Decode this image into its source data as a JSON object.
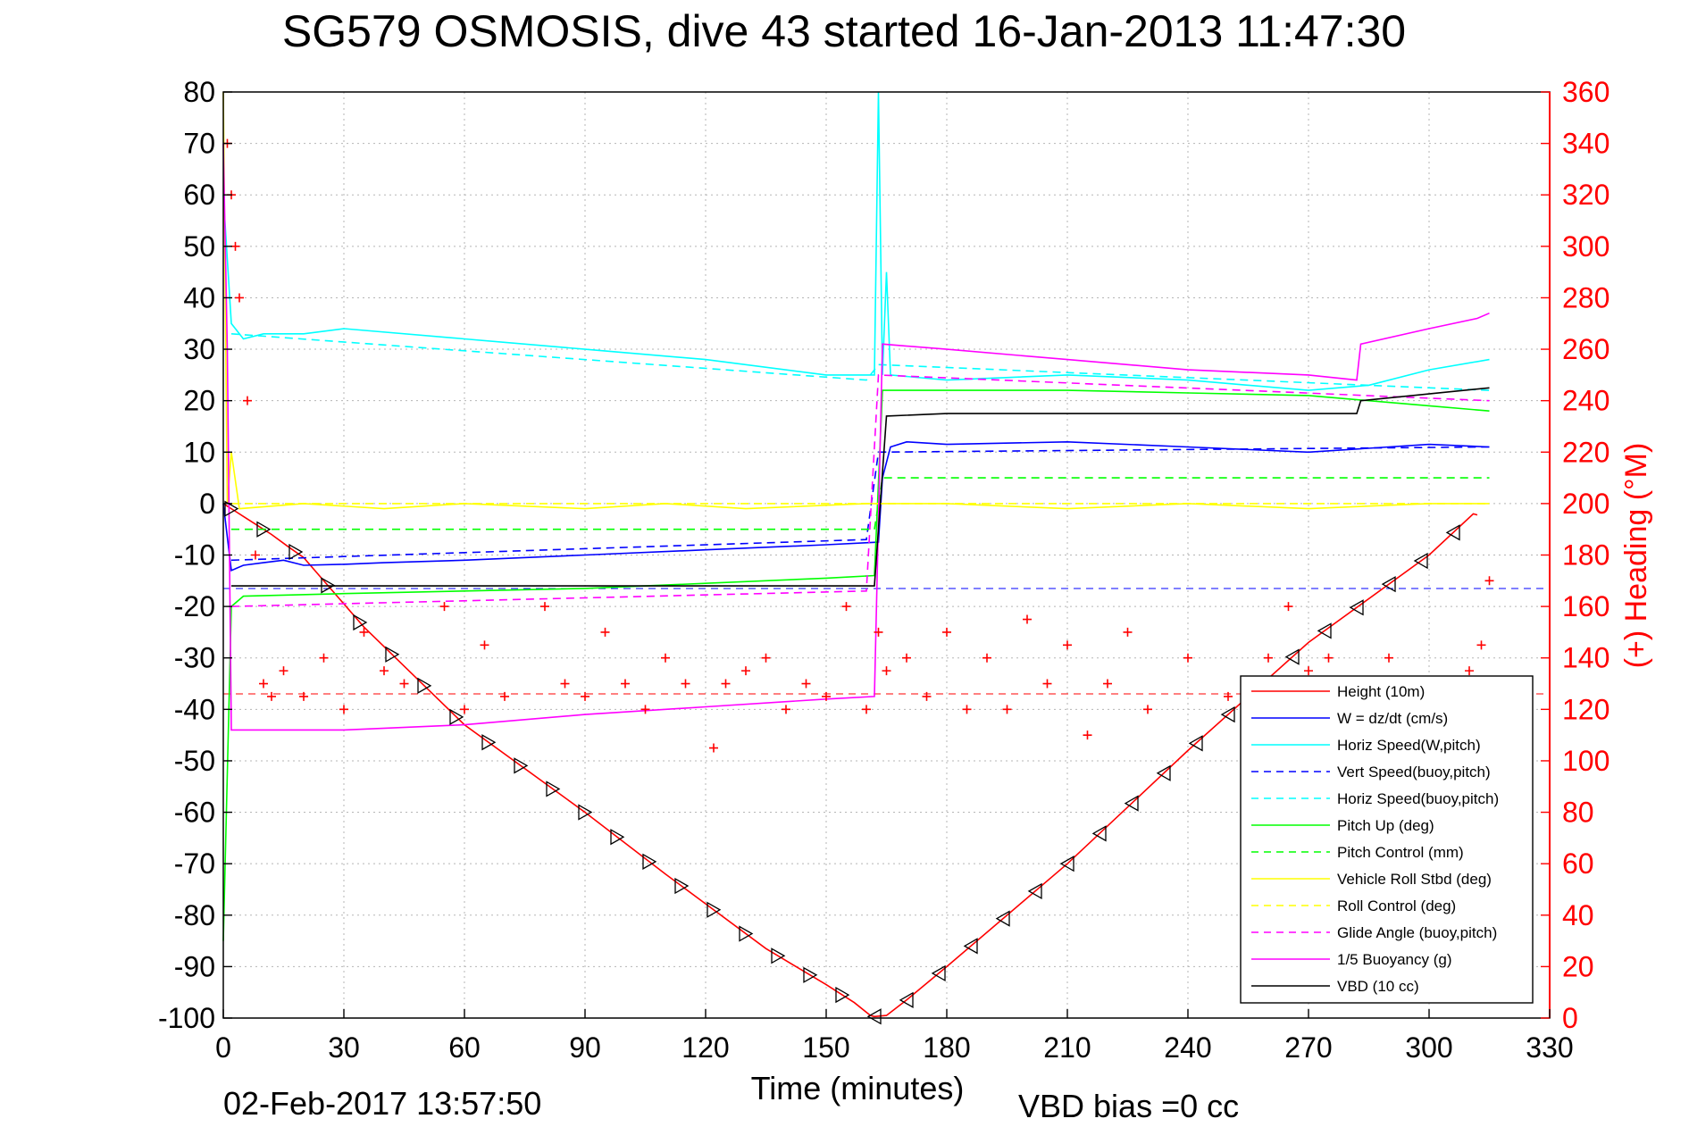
{
  "chart_data": {
    "type": "line",
    "title": "SG579 OSMOSIS, dive 43 started 16-Jan-2013 11:47:30",
    "xlabel": "Time (minutes)",
    "ylabel_right": "(+) Heading (°M)",
    "footer_left": "02-Feb-2017 13:57:50",
    "footer_right": "VBD bias =0 cc",
    "xlim": [
      0,
      330
    ],
    "ylim": [
      -100,
      80
    ],
    "ylim_right": [
      0,
      360
    ],
    "xticks": [
      0,
      30,
      60,
      90,
      120,
      150,
      180,
      210,
      240,
      270,
      300,
      330
    ],
    "yticks": [
      80,
      70,
      60,
      50,
      40,
      30,
      20,
      10,
      0,
      -10,
      -20,
      -30,
      -40,
      -50,
      -60,
      -70,
      -80,
      -90,
      -100
    ],
    "yticks_right": [
      360,
      340,
      320,
      300,
      280,
      260,
      240,
      220,
      200,
      180,
      160,
      140,
      120,
      100,
      80,
      60,
      40,
      20,
      0
    ],
    "grid": true,
    "legend_position": "bottom-right",
    "colors": {
      "right_axis": "#ff0000",
      "red": "#ff0000",
      "blue": "#0000ff",
      "cyan": "#00ffff",
      "green": "#00ff00",
      "yellow": "#ffff00",
      "magenta": "#ff00ff",
      "black": "#000000"
    },
    "legend": [
      {
        "label": "Height (10m)",
        "color": "#ff0000",
        "dash": false
      },
      {
        "label": "W = dz/dt (cm/s)",
        "color": "#0000ff",
        "dash": false
      },
      {
        "label": "Horiz Speed(W,pitch)",
        "color": "#00ffff",
        "dash": false
      },
      {
        "label": "Vert Speed(buoy,pitch)",
        "color": "#0000ff",
        "dash": true
      },
      {
        "label": "Horiz Speed(buoy,pitch)",
        "color": "#00ffff",
        "dash": true
      },
      {
        "label": "Pitch Up (deg)",
        "color": "#00ff00",
        "dash": false
      },
      {
        "label": "Pitch Control (mm)",
        "color": "#00ff00",
        "dash": true
      },
      {
        "label": "Vehicle Roll Stbd (deg)",
        "color": "#ffff00",
        "dash": false
      },
      {
        "label": "Roll Control (deg)",
        "color": "#ffff00",
        "dash": true
      },
      {
        "label": "Glide Angle (buoy,pitch)",
        "color": "#ff00ff",
        "dash": true
      },
      {
        "label": "1/5 Buoyancy (g)",
        "color": "#ff00ff",
        "dash": false
      },
      {
        "label": "VBD (10 cc)",
        "color": "#000000",
        "dash": false
      }
    ],
    "series": [
      {
        "name": "Height (10m)",
        "color": "#ff0000",
        "dash": false,
        "points": [
          [
            0,
            0
          ],
          [
            1,
            -0.5
          ],
          [
            3,
            -1.5
          ],
          [
            5,
            -2.5
          ],
          [
            8,
            -4
          ],
          [
            12,
            -6
          ],
          [
            16,
            -8.3
          ],
          [
            20,
            -10.5
          ],
          [
            35,
            -24
          ],
          [
            60,
            -43
          ],
          [
            90,
            -60
          ],
          [
            110,
            -72
          ],
          [
            135,
            -86.5
          ],
          [
            150,
            -93.5
          ],
          [
            157,
            -97
          ],
          [
            161,
            -99.5
          ],
          [
            162,
            -99.7
          ],
          [
            165,
            -99.5
          ],
          [
            170,
            -96.5
          ],
          [
            180,
            -90
          ],
          [
            210,
            -70
          ],
          [
            240,
            -48
          ],
          [
            270,
            -27
          ],
          [
            300,
            -10
          ],
          [
            311,
            -2
          ],
          [
            312,
            -2.2
          ]
        ]
      },
      {
        "name": "W = dz/dt (cm/s)",
        "color": "#0000ff",
        "dash": false,
        "points": [
          [
            0,
            0
          ],
          [
            2,
            -13
          ],
          [
            5,
            -12
          ],
          [
            10,
            -11.5
          ],
          [
            15,
            -11
          ],
          [
            20,
            -12
          ],
          [
            30,
            -11.8
          ],
          [
            40,
            -11.5
          ],
          [
            60,
            -11
          ],
          [
            90,
            -10
          ],
          [
            120,
            -9
          ],
          [
            150,
            -8
          ],
          [
            163,
            -7.5
          ],
          [
            164,
            5
          ],
          [
            166,
            11
          ],
          [
            170,
            12
          ],
          [
            180,
            11.5
          ],
          [
            210,
            12
          ],
          [
            240,
            11
          ],
          [
            270,
            10
          ],
          [
            300,
            11.5
          ],
          [
            315,
            11
          ]
        ]
      },
      {
        "name": "Horiz Speed(W,pitch)",
        "color": "#00ffff",
        "dash": false,
        "points": [
          [
            0,
            60
          ],
          [
            2,
            35
          ],
          [
            5,
            32
          ],
          [
            10,
            33
          ],
          [
            20,
            33
          ],
          [
            30,
            34
          ],
          [
            60,
            32
          ],
          [
            90,
            30
          ],
          [
            120,
            28
          ],
          [
            150,
            25
          ],
          [
            162,
            25
          ],
          [
            163,
            80
          ],
          [
            164,
            25
          ],
          [
            165,
            45
          ],
          [
            166,
            25
          ],
          [
            180,
            24
          ],
          [
            210,
            25
          ],
          [
            240,
            24
          ],
          [
            270,
            22
          ],
          [
            285,
            23
          ],
          [
            300,
            26
          ],
          [
            315,
            28
          ]
        ]
      },
      {
        "name": "Vert Speed(buoy,pitch)",
        "color": "#0000ff",
        "dash": true,
        "points": [
          [
            2,
            -11
          ],
          [
            160,
            -7
          ],
          [
            163,
            10
          ],
          [
            315,
            11
          ]
        ]
      },
      {
        "name": "Horiz Speed(buoy,pitch)",
        "color": "#00ffff",
        "dash": true,
        "points": [
          [
            2,
            33
          ],
          [
            160,
            24
          ],
          [
            163,
            27
          ],
          [
            315,
            22
          ]
        ]
      },
      {
        "name": "Pitch Up (deg)",
        "color": "#00ff00",
        "dash": false,
        "points": [
          [
            0,
            -85
          ],
          [
            2,
            -20
          ],
          [
            5,
            -18
          ],
          [
            30,
            -17.5
          ],
          [
            60,
            -17
          ],
          [
            90,
            -16.5
          ],
          [
            120,
            -15.5
          ],
          [
            150,
            -14.5
          ],
          [
            162,
            -14
          ],
          [
            164,
            22
          ],
          [
            180,
            22
          ],
          [
            210,
            22
          ],
          [
            240,
            21.5
          ],
          [
            270,
            21
          ],
          [
            300,
            19
          ],
          [
            315,
            18
          ]
        ]
      },
      {
        "name": "Pitch Control (mm)",
        "color": "#00ff00",
        "dash": true,
        "points": [
          [
            2,
            -5
          ],
          [
            162,
            -5
          ],
          [
            164,
            5
          ],
          [
            315,
            5
          ]
        ]
      },
      {
        "name": "Vehicle Roll Stbd (deg)",
        "color": "#ffff00",
        "dash": false,
        "points": [
          [
            0,
            80
          ],
          [
            1,
            0
          ],
          [
            2,
            10
          ],
          [
            4,
            -1
          ],
          [
            20,
            0
          ],
          [
            40,
            -1
          ],
          [
            60,
            0
          ],
          [
            90,
            -1
          ],
          [
            110,
            0
          ],
          [
            130,
            -1
          ],
          [
            160,
            0
          ],
          [
            163,
            0
          ],
          [
            180,
            0
          ],
          [
            210,
            -1
          ],
          [
            240,
            0
          ],
          [
            270,
            -1
          ],
          [
            300,
            0
          ],
          [
            315,
            0
          ]
        ]
      },
      {
        "name": "Roll Control (deg)",
        "color": "#ffff00",
        "dash": true,
        "points": [
          [
            2,
            0
          ],
          [
            315,
            0
          ]
        ]
      },
      {
        "name": "Glide Angle (buoy,pitch)",
        "color": "#ff00ff",
        "dash": true,
        "points": [
          [
            2,
            -20
          ],
          [
            160,
            -17
          ],
          [
            163,
            25
          ],
          [
            315,
            20
          ]
        ]
      },
      {
        "name": "1/5 Buoyancy (g)",
        "color": "#ff00ff",
        "dash": false,
        "points": [
          [
            0,
            70
          ],
          [
            1,
            30
          ],
          [
            2,
            -44
          ],
          [
            30,
            -44
          ],
          [
            60,
            -43
          ],
          [
            90,
            -41
          ],
          [
            120,
            -39.5
          ],
          [
            150,
            -38
          ],
          [
            162,
            -37.5
          ],
          [
            164,
            31
          ],
          [
            180,
            30
          ],
          [
            210,
            28
          ],
          [
            240,
            26
          ],
          [
            270,
            25
          ],
          [
            282,
            24
          ],
          [
            283,
            31
          ],
          [
            300,
            34
          ],
          [
            312,
            36
          ],
          [
            315,
            37
          ]
        ]
      },
      {
        "name": "VBD (10 cc)",
        "color": "#000000",
        "dash": false,
        "points": [
          [
            2,
            -16
          ],
          [
            162,
            -16
          ],
          [
            165,
            17
          ],
          [
            180,
            17.5
          ],
          [
            282,
            17.5
          ],
          [
            283,
            20
          ],
          [
            315,
            22.5
          ]
        ]
      }
    ],
    "heading_points": [
      [
        1,
        340
      ],
      [
        2,
        320
      ],
      [
        3,
        300
      ],
      [
        4,
        280
      ],
      [
        6,
        240
      ],
      [
        8,
        180
      ],
      [
        10,
        130
      ],
      [
        12,
        125
      ],
      [
        15,
        135
      ],
      [
        20,
        125
      ],
      [
        25,
        140
      ],
      [
        30,
        120
      ],
      [
        35,
        150
      ],
      [
        40,
        135
      ],
      [
        45,
        130
      ],
      [
        55,
        160
      ],
      [
        60,
        120
      ],
      [
        65,
        145
      ],
      [
        70,
        125
      ],
      [
        80,
        160
      ],
      [
        85,
        130
      ],
      [
        90,
        125
      ],
      [
        95,
        150
      ],
      [
        100,
        130
      ],
      [
        105,
        120
      ],
      [
        110,
        140
      ],
      [
        115,
        130
      ],
      [
        122,
        105
      ],
      [
        125,
        130
      ],
      [
        130,
        135
      ],
      [
        135,
        140
      ],
      [
        140,
        120
      ],
      [
        145,
        130
      ],
      [
        150,
        125
      ],
      [
        155,
        160
      ],
      [
        160,
        120
      ],
      [
        163,
        150
      ],
      [
        165,
        135
      ],
      [
        170,
        140
      ],
      [
        175,
        125
      ],
      [
        180,
        150
      ],
      [
        185,
        120
      ],
      [
        190,
        140
      ],
      [
        195,
        120
      ],
      [
        200,
        155
      ],
      [
        205,
        130
      ],
      [
        210,
        145
      ],
      [
        215,
        110
      ],
      [
        220,
        130
      ],
      [
        225,
        150
      ],
      [
        230,
        120
      ],
      [
        240,
        140
      ],
      [
        250,
        125
      ],
      [
        260,
        140
      ],
      [
        265,
        160
      ],
      [
        270,
        135
      ],
      [
        275,
        140
      ],
      [
        280,
        125
      ],
      [
        290,
        140
      ],
      [
        300,
        130
      ],
      [
        310,
        135
      ],
      [
        313,
        145
      ],
      [
        315,
        170
      ]
    ],
    "reference_lines": [
      {
        "y": -37,
        "color": "#ff0000",
        "dash": true
      },
      {
        "y": -16.5,
        "color": "#0000ff",
        "dash": true
      }
    ]
  }
}
